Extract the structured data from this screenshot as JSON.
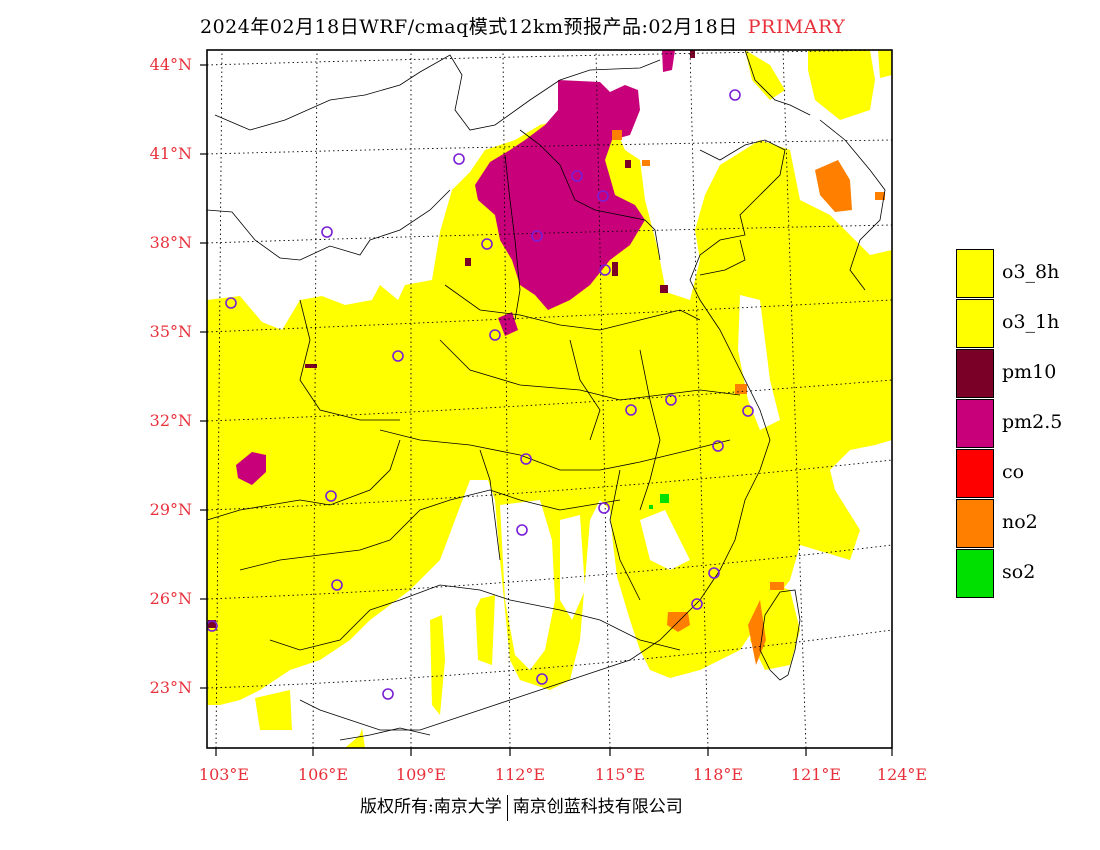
{
  "title": {
    "main": "2024年02月18日WRF/cmaq模式12km预报产品:02月18日",
    "tag": "PRIMARY"
  },
  "map": {
    "lat_labels": [
      "44°N",
      "41°N",
      "38°N",
      "35°N",
      "32°N",
      "29°N",
      "26°N",
      "23°N"
    ],
    "lon_labels": [
      "103°E",
      "106°E",
      "109°E",
      "112°E",
      "115°E",
      "118°E",
      "121°E",
      "124°E"
    ],
    "station_marker_color": "#7a1fd6",
    "fill_colors": {
      "o3_8h": "#ffff00",
      "o3_1h": "#ffff00",
      "pm10": "#7a0028",
      "pm2.5": "#c8007a",
      "co": "#ff0000",
      "no2": "#ff7f00",
      "so2": "#00e000"
    }
  },
  "legend": {
    "items": [
      {
        "label": "o3_8h",
        "color": "#ffff00"
      },
      {
        "label": "o3_1h",
        "color": "#ffff00"
      },
      {
        "label": "pm10",
        "color": "#7a0028"
      },
      {
        "label": "pm2.5",
        "color": "#c8007a"
      },
      {
        "label": "co",
        "color": "#ff0000"
      },
      {
        "label": "no2",
        "color": "#ff7f00"
      },
      {
        "label": "so2",
        "color": "#00e000"
      }
    ]
  },
  "footer": {
    "left": "版权所有:南京大学",
    "right": "南京创蓝科技有限公司"
  }
}
